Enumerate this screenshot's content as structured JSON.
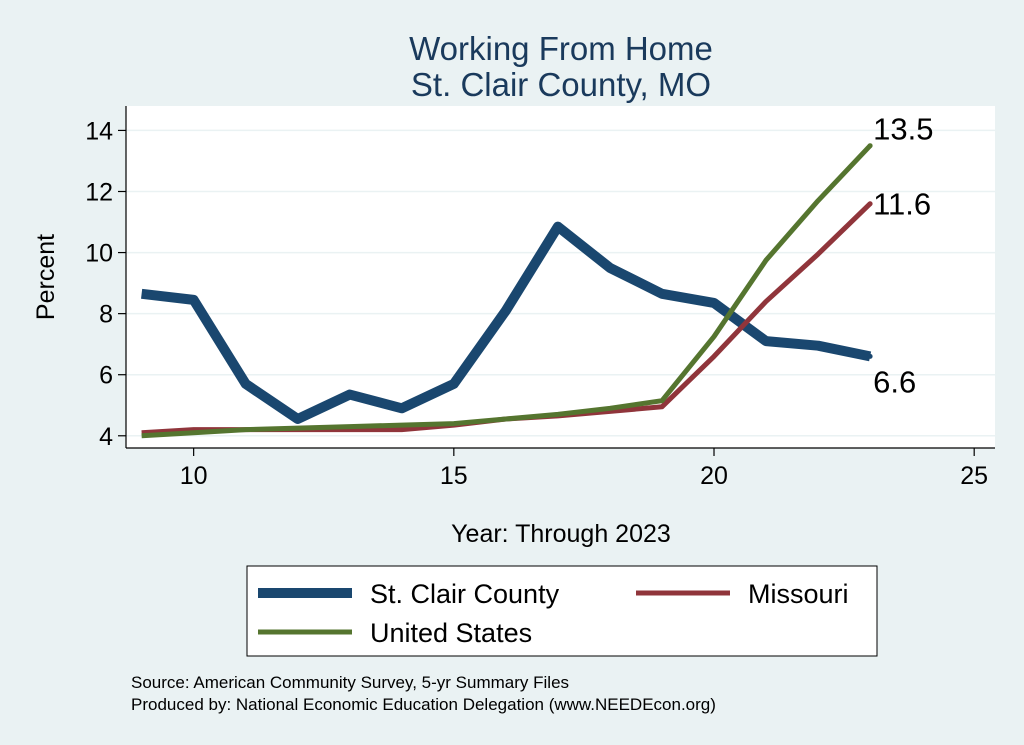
{
  "chart_data": {
    "type": "line",
    "title": "Working From Home",
    "subtitle": "St. Clair County, MO",
    "xlabel": "Year: Through 2023",
    "ylabel": "Percent",
    "xlim": [
      8.7,
      25.4
    ],
    "ylim": [
      3.6,
      14.8
    ],
    "xticks": [
      10,
      15,
      20,
      25
    ],
    "yticks": [
      4,
      6,
      8,
      10,
      12,
      14
    ],
    "grid": true,
    "x": [
      9,
      10,
      11,
      12,
      13,
      14,
      15,
      16,
      17,
      18,
      19,
      20,
      21,
      22,
      23
    ],
    "series": [
      {
        "name": "St. Clair County",
        "color": "#1a476f",
        "width": 10,
        "values": [
          8.65,
          8.45,
          5.7,
          4.55,
          5.35,
          4.9,
          5.7,
          8.1,
          10.85,
          9.5,
          8.65,
          8.35,
          7.1,
          6.95,
          6.6
        ],
        "end_label": "6.6"
      },
      {
        "name": "Missouri",
        "color": "#90353b",
        "width": 5,
        "values": [
          4.1,
          4.2,
          4.2,
          4.2,
          4.2,
          4.2,
          4.35,
          4.55,
          4.65,
          4.8,
          4.95,
          6.6,
          8.4,
          9.95,
          11.6
        ],
        "end_label": "11.6"
      },
      {
        "name": "United States",
        "color": "#55752f",
        "width": 5,
        "values": [
          4.0,
          4.1,
          4.2,
          4.25,
          4.3,
          4.35,
          4.4,
          4.55,
          4.7,
          4.9,
          5.15,
          7.25,
          9.75,
          11.7,
          13.5
        ],
        "end_label": "13.5"
      }
    ],
    "legend": {
      "placement": "bottom"
    }
  },
  "notes": {
    "source": "Source: American Community Survey, 5-yr Summary Files",
    "produced_by": "Produced by: National Economic Education Delegation (www.NEEDEcon.org)"
  }
}
